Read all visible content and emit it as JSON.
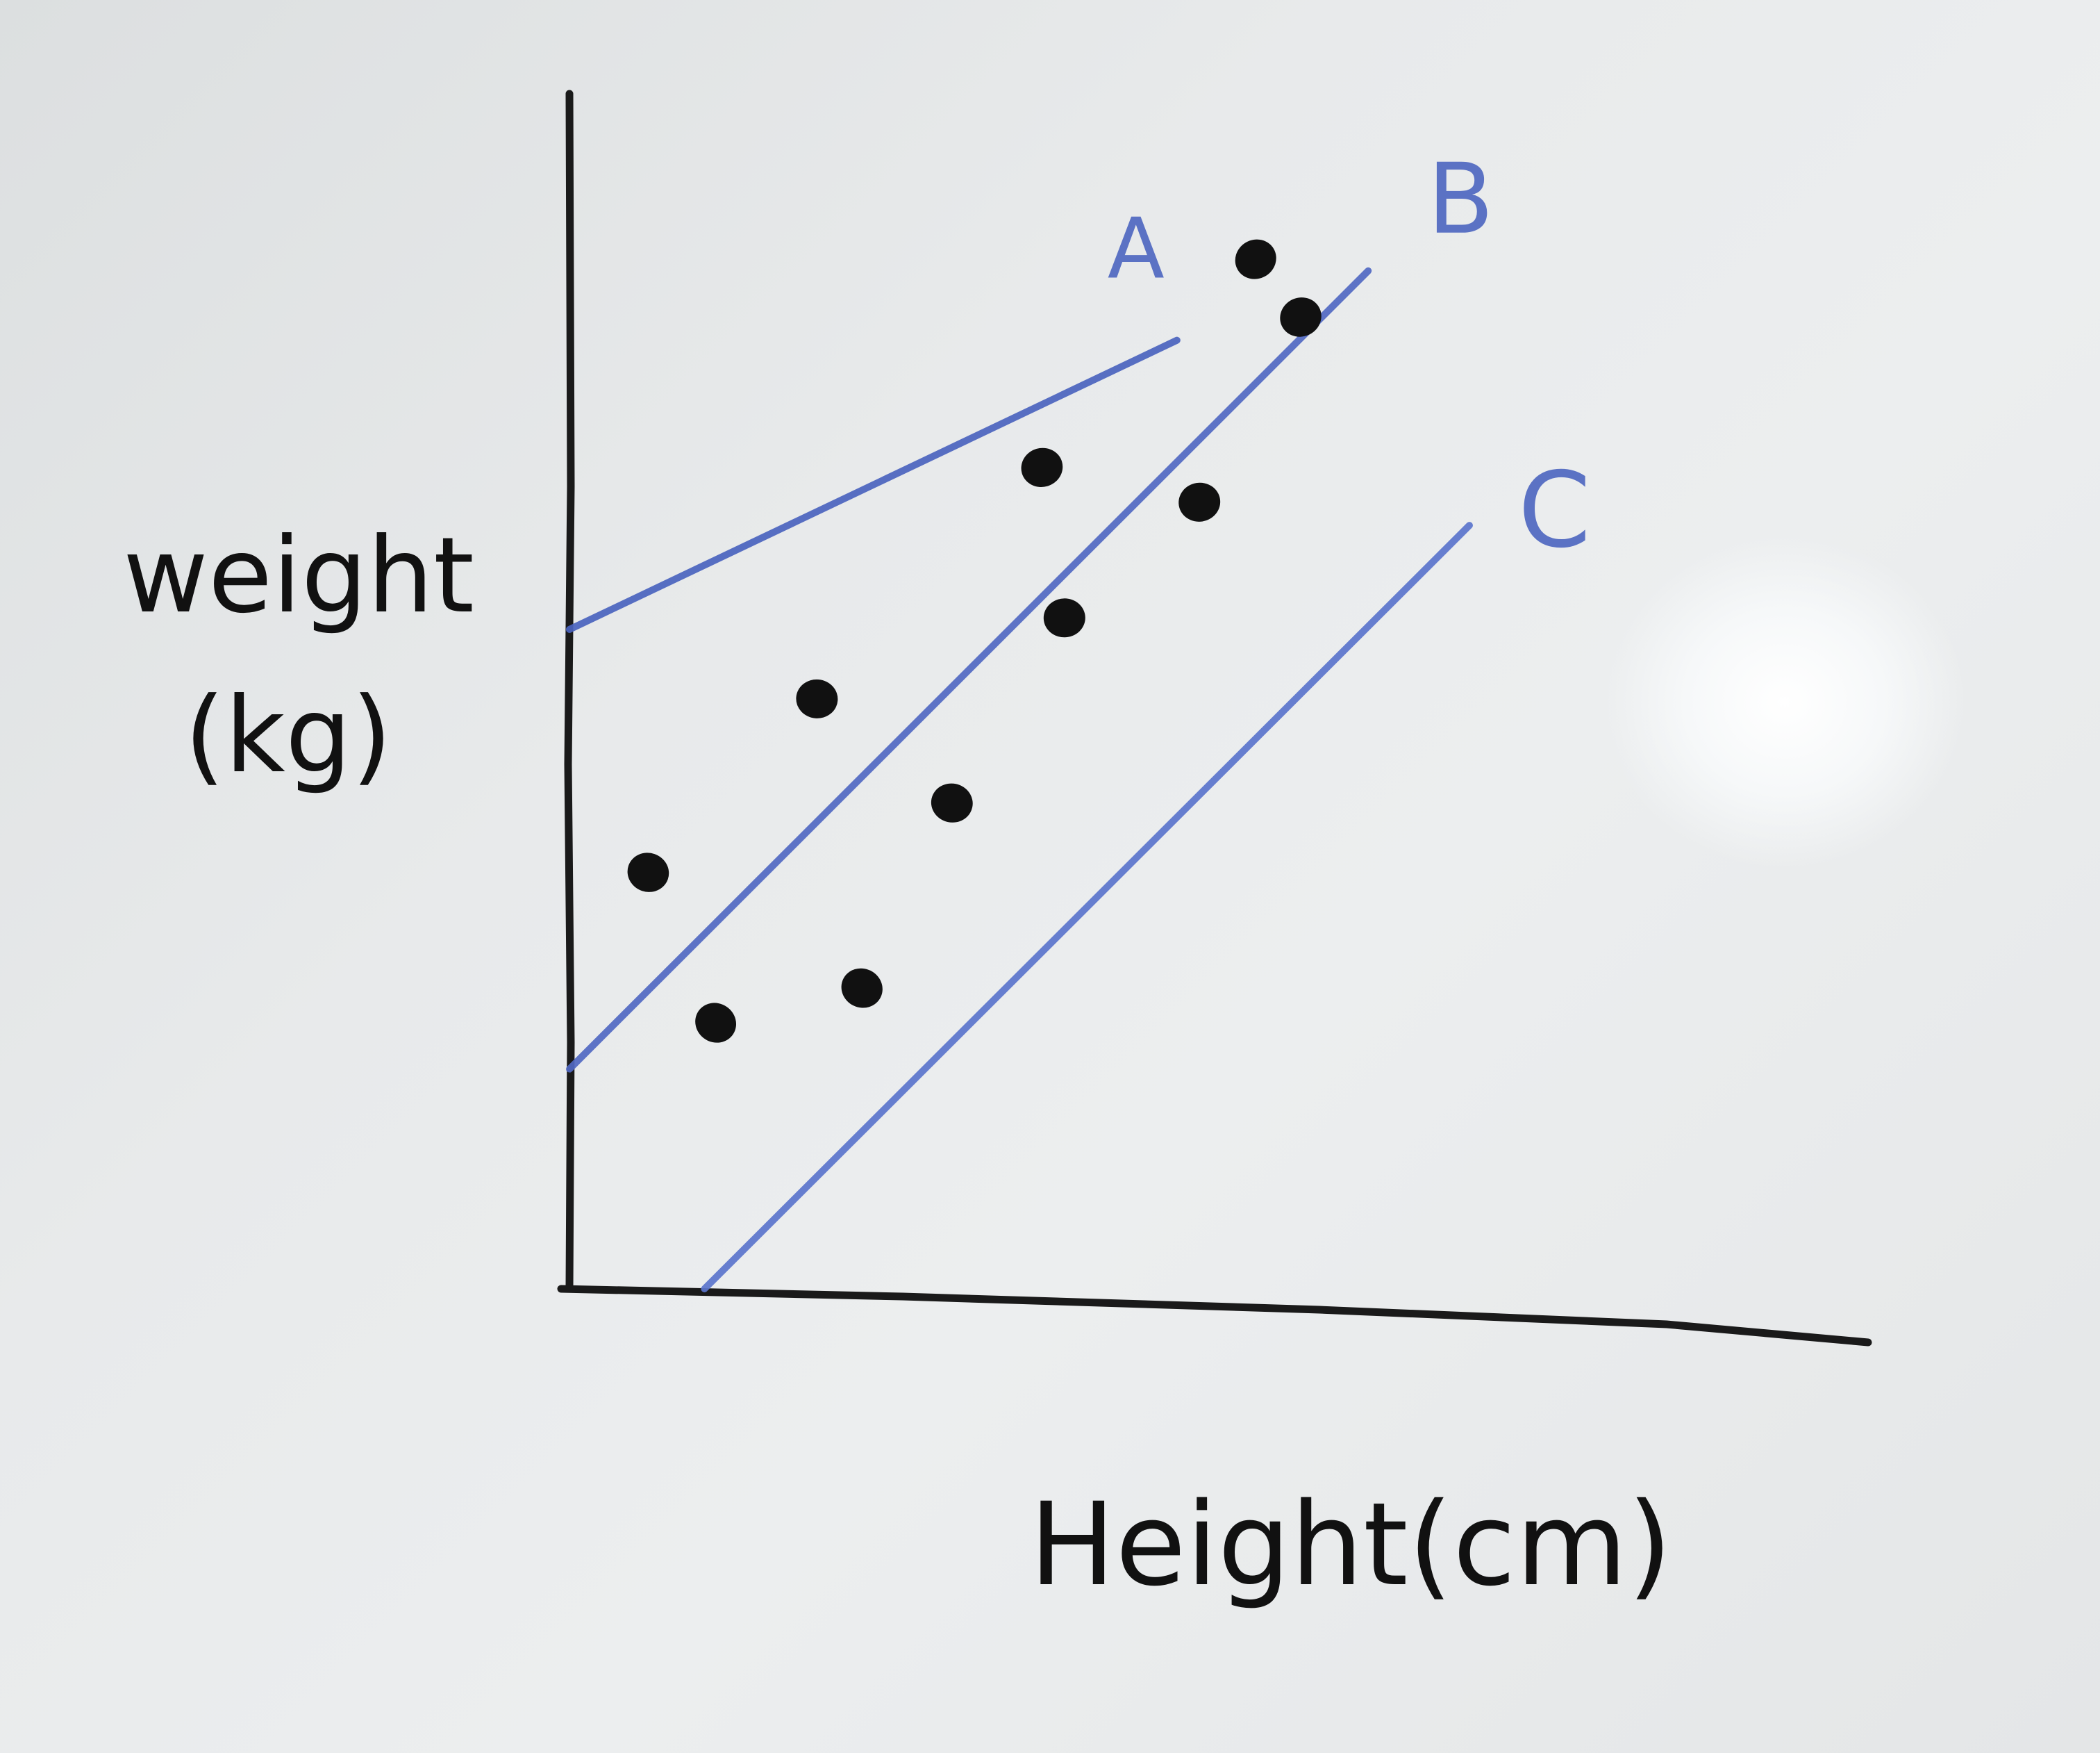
{
  "chart_data": {
    "type": "scatter",
    "title": "",
    "xlabel": "Height(cm)",
    "ylabel_line1": "weight",
    "ylabel_line2": "(kg)",
    "xlim": [
      0,
      100
    ],
    "ylim": [
      0,
      100
    ],
    "grid": false,
    "points": [
      {
        "x": 61,
        "y": 89
      },
      {
        "x": 65,
        "y": 84
      },
      {
        "x": 42,
        "y": 71
      },
      {
        "x": 56,
        "y": 68
      },
      {
        "x": 44,
        "y": 58
      },
      {
        "x": 22,
        "y": 51
      },
      {
        "x": 34,
        "y": 42
      },
      {
        "x": 7,
        "y": 36
      },
      {
        "x": 26,
        "y": 26
      },
      {
        "x": 13,
        "y": 23
      }
    ],
    "lines": [
      {
        "name": "A",
        "x1": 0,
        "y1": 57,
        "x2": 54,
        "y2": 82,
        "color": "#4a63be"
      },
      {
        "name": "B",
        "x1": 0,
        "y1": 19,
        "x2": 71,
        "y2": 88,
        "color": "#5068c2"
      },
      {
        "name": "C",
        "x1": 12,
        "y1": 0,
        "x2": 80,
        "y2": 66,
        "color": "#5a74cc"
      }
    ]
  }
}
